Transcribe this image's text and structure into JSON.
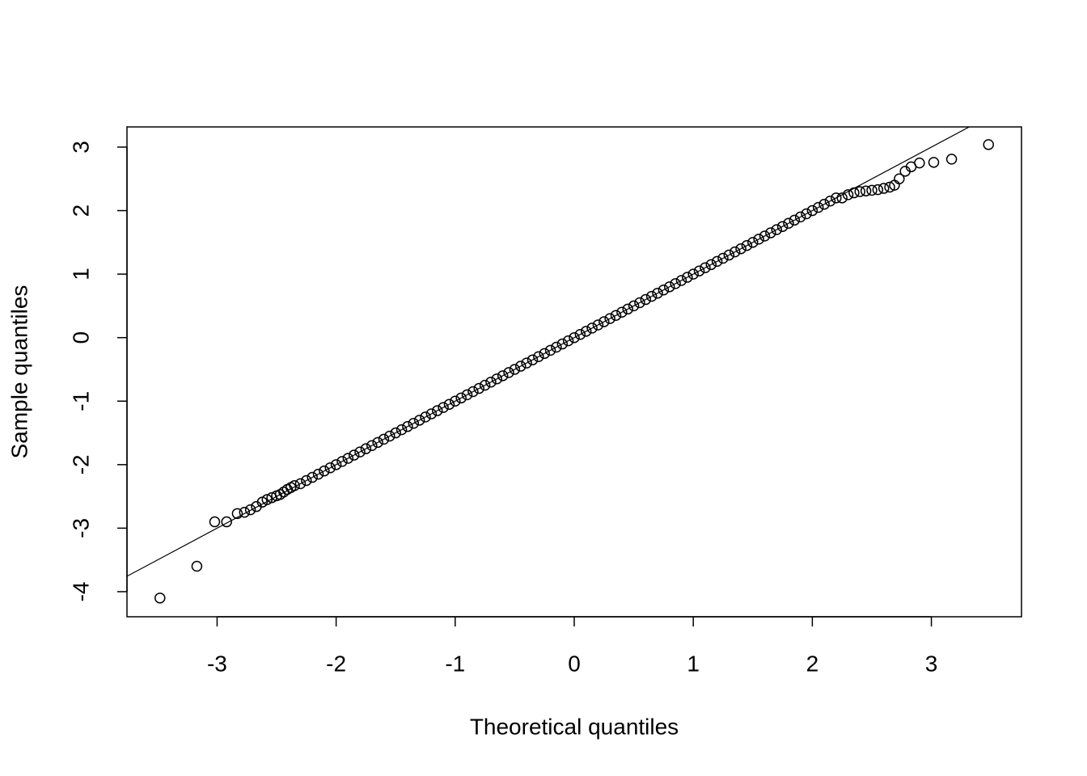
{
  "chart_data": {
    "type": "scatter",
    "x_label": "Theoretical quantiles",
    "y_label": "Sample quantiles",
    "xlim": [
      -3.757,
      3.757
    ],
    "ylim": [
      -4.395,
      3.318
    ],
    "xticks": [
      -3,
      -2,
      -1,
      0,
      1,
      2,
      3
    ],
    "yticks": [
      -4,
      -3,
      -2,
      -1,
      0,
      1,
      2,
      3
    ],
    "color": "#000000",
    "reference_line": {
      "slope": 1,
      "intercept": 0
    },
    "x": [
      -3.48,
      -3.17,
      -3.02,
      -2.92,
      -2.83,
      -2.77,
      -2.72,
      -2.67,
      -2.62,
      -2.58,
      -2.54,
      -2.5,
      -2.47,
      -2.44,
      -2.41,
      -2.38,
      -2.35,
      -2.3,
      -2.25,
      -2.2,
      -2.15,
      -2.1,
      -2.05,
      -2.0,
      -1.95,
      -1.9,
      -1.85,
      -1.8,
      -1.75,
      -1.7,
      -1.65,
      -1.6,
      -1.55,
      -1.5,
      -1.45,
      -1.4,
      -1.35,
      -1.3,
      -1.25,
      -1.2,
      -1.15,
      -1.1,
      -1.05,
      -1.0,
      -0.95,
      -0.9,
      -0.85,
      -0.8,
      -0.75,
      -0.7,
      -0.65,
      -0.6,
      -0.55,
      -0.5,
      -0.45,
      -0.4,
      -0.35,
      -0.3,
      -0.25,
      -0.2,
      -0.15,
      -0.1,
      -0.05,
      0,
      0.05,
      0.1,
      0.15,
      0.2,
      0.25,
      0.3,
      0.35,
      0.4,
      0.45,
      0.5,
      0.55,
      0.6,
      0.65,
      0.7,
      0.75,
      0.8,
      0.85,
      0.9,
      0.95,
      1.0,
      1.05,
      1.1,
      1.15,
      1.2,
      1.25,
      1.3,
      1.35,
      1.4,
      1.45,
      1.5,
      1.55,
      1.6,
      1.65,
      1.7,
      1.75,
      1.8,
      1.85,
      1.9,
      1.95,
      2.0,
      2.05,
      2.1,
      2.15,
      2.2,
      2.25,
      2.3,
      2.35,
      2.4,
      2.45,
      2.5,
      2.55,
      2.6,
      2.65,
      2.69,
      2.73,
      2.78,
      2.83,
      2.9,
      3.02,
      3.17,
      3.48
    ],
    "values": [
      -4.1,
      -3.6,
      -2.9,
      -2.9,
      -2.77,
      -2.75,
      -2.71,
      -2.66,
      -2.59,
      -2.55,
      -2.52,
      -2.49,
      -2.47,
      -2.43,
      -2.39,
      -2.36,
      -2.33,
      -2.3,
      -2.25,
      -2.2,
      -2.15,
      -2.1,
      -2.05,
      -2.0,
      -1.95,
      -1.9,
      -1.85,
      -1.8,
      -1.75,
      -1.7,
      -1.65,
      -1.6,
      -1.55,
      -1.5,
      -1.45,
      -1.4,
      -1.35,
      -1.3,
      -1.25,
      -1.2,
      -1.15,
      -1.1,
      -1.05,
      -1.0,
      -0.95,
      -0.9,
      -0.85,
      -0.8,
      -0.75,
      -0.7,
      -0.65,
      -0.6,
      -0.55,
      -0.5,
      -0.45,
      -0.4,
      -0.35,
      -0.3,
      -0.25,
      -0.2,
      -0.15,
      -0.1,
      -0.05,
      0,
      0.05,
      0.1,
      0.15,
      0.2,
      0.25,
      0.3,
      0.35,
      0.4,
      0.45,
      0.5,
      0.55,
      0.6,
      0.65,
      0.7,
      0.75,
      0.8,
      0.85,
      0.9,
      0.95,
      1.0,
      1.05,
      1.1,
      1.15,
      1.2,
      1.25,
      1.3,
      1.35,
      1.4,
      1.45,
      1.5,
      1.55,
      1.6,
      1.65,
      1.7,
      1.75,
      1.8,
      1.85,
      1.9,
      1.95,
      2.0,
      2.05,
      2.1,
      2.15,
      2.2,
      2.2,
      2.25,
      2.28,
      2.3,
      2.31,
      2.32,
      2.33,
      2.35,
      2.37,
      2.4,
      2.5,
      2.62,
      2.69,
      2.75,
      2.76,
      2.81,
      3.04
    ]
  }
}
